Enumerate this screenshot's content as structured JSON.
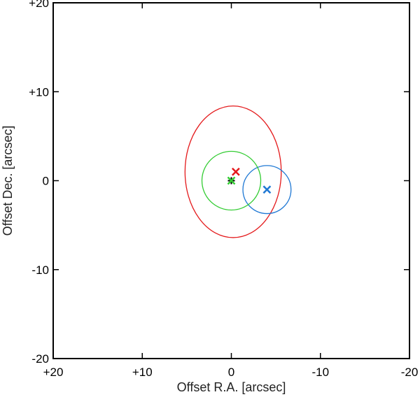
{
  "chart_data": {
    "type": "scatter",
    "title": "",
    "xlabel": "Offset R.A. [arcsec]",
    "ylabel": "Offset Dec. [arcsec]",
    "xlim": [
      20,
      -20
    ],
    "ylim": [
      -20,
      20
    ],
    "x_ticks": [
      20,
      10,
      0,
      -10,
      -20
    ],
    "x_tick_labels": [
      "+20",
      "+10",
      "0",
      "-10",
      "-20"
    ],
    "y_ticks": [
      20,
      10,
      0,
      -10,
      -20
    ],
    "y_tick_labels": [
      "+20",
      "+10",
      "0",
      "-10",
      "-20"
    ],
    "grid": false,
    "series": [
      {
        "color": "#e41a1c",
        "marker": "x",
        "x": -0.5,
        "y": 1.0,
        "ellipse_center": [
          -0.2,
          1.0
        ],
        "ellipse_semi_axes": [
          5.4,
          7.4
        ]
      },
      {
        "color": "#1f78d4",
        "marker": "x",
        "x": -4.0,
        "y": -1.0,
        "ellipse_center": [
          -4.0,
          -1.0
        ],
        "ellipse_semi_axes": [
          2.7,
          2.7
        ]
      },
      {
        "color": "#33cc33",
        "marker": "x",
        "x": 0.0,
        "y": 0.0,
        "ellipse_center": [
          0.0,
          0.0
        ],
        "ellipse_semi_axes": [
          3.3,
          3.3
        ]
      }
    ],
    "center_marker": {
      "x": 0.0,
      "y": 0.0,
      "color": "#000000",
      "marker": "+"
    }
  }
}
